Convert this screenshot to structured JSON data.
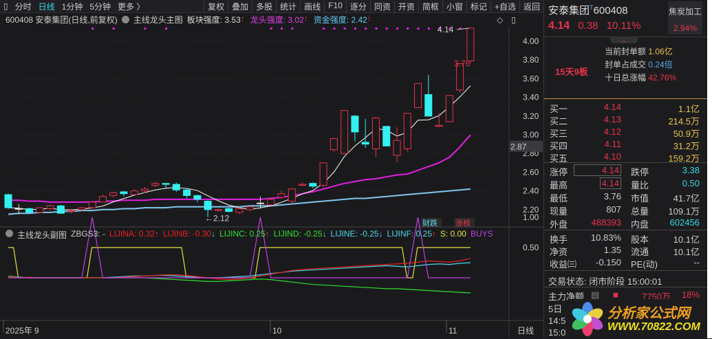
{
  "toolbar": {
    "left": [
      "分时",
      "日线",
      "1分钟",
      "5分钟",
      "更多 〉"
    ],
    "active": "日线",
    "right": [
      "复权",
      "叠加",
      "多股",
      "统计",
      "画线",
      "F10",
      "逐分",
      "同资",
      "开资",
      "简框",
      "小窗",
      "标记",
      "+自选",
      "返回"
    ]
  },
  "infobar": {
    "code_name": "600408 安泰集团(日线,前复权)",
    "indicator": "主线龙头主图",
    "items": [
      {
        "label": "板块强度: 3.53",
        "color": "#dddddd"
      },
      {
        "label": "龙头强度: 3.02",
        "color": "#e040e0"
      },
      {
        "label": "资金强度: 2.42",
        "color": "#60c8f0"
      }
    ]
  },
  "price_axis": {
    "ticks": [
      "4.00",
      "3.80",
      "3.60",
      "3.40",
      "3.20",
      "3.00",
      "2.80",
      "2.60",
      "2.40",
      "2.20"
    ],
    "current": "2.87"
  },
  "chart_labels": {
    "high": "4.14",
    "prev_high": "3.76",
    "low": "←2.12",
    "tag1": "财跌",
    "tag2": "涨榜"
  },
  "candles": [
    [
      2.36,
      2.22,
      2.37,
      2.21
    ],
    [
      2.21,
      2.21,
      2.26,
      2.15
    ],
    [
      2.21,
      2.17,
      2.22,
      2.16
    ],
    [
      2.17,
      2.22,
      2.22,
      2.16
    ],
    [
      2.21,
      2.24,
      2.26,
      2.19
    ],
    [
      2.24,
      2.16,
      2.25,
      2.16
    ],
    [
      2.18,
      2.19,
      2.21,
      2.16
    ],
    [
      2.2,
      2.22,
      2.23,
      2.18
    ],
    [
      2.22,
      2.28,
      2.29,
      2.21
    ],
    [
      2.28,
      2.34,
      2.36,
      2.28
    ],
    [
      2.35,
      2.38,
      2.39,
      2.33
    ],
    [
      2.39,
      2.37,
      2.4,
      2.34
    ],
    [
      2.36,
      2.4,
      2.42,
      2.35
    ],
    [
      2.4,
      2.42,
      2.44,
      2.38
    ],
    [
      2.46,
      2.48,
      2.5,
      2.44
    ],
    [
      2.48,
      2.47,
      2.48,
      2.42
    ],
    [
      2.47,
      2.41,
      2.49,
      2.39
    ],
    [
      2.41,
      2.35,
      2.42,
      2.32
    ],
    [
      2.35,
      2.31,
      2.36,
      2.28
    ],
    [
      2.29,
      2.2,
      2.3,
      2.12
    ],
    [
      2.19,
      2.2,
      2.21,
      2.18
    ],
    [
      2.21,
      2.18,
      2.22,
      2.17
    ],
    [
      2.17,
      2.21,
      2.23,
      2.15
    ],
    [
      2.2,
      2.23,
      2.24,
      2.18
    ],
    [
      2.27,
      2.27,
      2.34,
      2.22
    ],
    [
      2.25,
      2.31,
      2.33,
      2.24
    ],
    [
      2.33,
      2.37,
      2.4,
      2.32
    ],
    [
      2.29,
      2.42,
      2.43,
      2.26
    ],
    [
      2.46,
      2.47,
      2.49,
      2.45
    ],
    [
      2.48,
      2.45,
      2.49,
      2.43
    ],
    [
      2.46,
      2.7,
      2.7,
      2.44
    ],
    [
      2.84,
      2.96,
      2.96,
      2.82
    ],
    [
      2.8,
      3.26,
      3.26,
      2.8
    ],
    [
      3.2,
      3.03,
      3.21,
      2.93
    ],
    [
      2.92,
      2.9,
      3.17,
      2.86
    ],
    [
      2.85,
      3.18,
      3.18,
      2.76
    ],
    [
      3.09,
      2.88,
      3.09,
      2.88
    ],
    [
      2.78,
      2.94,
      3.08,
      2.71
    ],
    [
      2.85,
      3.23,
      3.23,
      2.82
    ],
    [
      3.29,
      3.55,
      3.55,
      3.29
    ],
    [
      3.43,
      3.2,
      3.64,
      3.2
    ],
    [
      3.09,
      3.1,
      3.23,
      3.09
    ],
    [
      3.14,
      3.42,
      3.42,
      3.14
    ],
    [
      3.48,
      3.76,
      3.76,
      3.45
    ],
    [
      3.79,
      4.14,
      4.14,
      3.76
    ]
  ],
  "ma_magenta": [
    2.3,
    2.3,
    2.29,
    2.29,
    2.28,
    2.28,
    2.28,
    2.28,
    2.28,
    2.29,
    2.29,
    2.3,
    2.3,
    2.3,
    2.31,
    2.31,
    2.31,
    2.31,
    2.31,
    2.31,
    2.31,
    2.31,
    2.31,
    2.31,
    2.31,
    2.32,
    2.33,
    2.35,
    2.37,
    2.39,
    2.42,
    2.45,
    2.48,
    2.5,
    2.52,
    2.53,
    2.55,
    2.57,
    2.58,
    2.62,
    2.66,
    2.7,
    2.76,
    2.87,
    3.0
  ],
  "ma_blue": [
    2.15,
    2.16,
    2.16,
    2.17,
    2.17,
    2.18,
    2.18,
    2.19,
    2.19,
    2.2,
    2.2,
    2.21,
    2.21,
    2.22,
    2.22,
    2.22,
    2.23,
    2.23,
    2.23,
    2.23,
    2.23,
    2.23,
    2.23,
    2.24,
    2.24,
    2.24,
    2.25,
    2.26,
    2.27,
    2.28,
    2.29,
    2.3,
    2.31,
    2.32,
    2.32,
    2.33,
    2.34,
    2.35,
    2.36,
    2.37,
    2.38,
    2.39,
    2.4,
    2.41,
    2.42
  ],
  "colors": {
    "up": "#e8334a",
    "down": "#35f0f0",
    "ma5": "#ffffff",
    "ma_magenta": "#e020e0",
    "ma_blue": "#80c8f0"
  },
  "sub": {
    "indicator": "主线龙头副图",
    "name": "ZBGS3: -",
    "items": [
      {
        "label": "LIJINA: 0.32",
        "color": "#e82020",
        "arrow": "↑"
      },
      {
        "label": "LIJINB: -0.30",
        "color": "#e82020",
        "arrow": "↓"
      },
      {
        "label": "LIJINC: 0.25",
        "color": "#30e030",
        "arrow": "↑"
      },
      {
        "label": "LIJIND: -0.25",
        "color": "#30e030",
        "arrow": "↓"
      },
      {
        "label": "LIJINE: -0.25",
        "color": "#50d8e8",
        "arrow": "↓"
      },
      {
        "label": "LIJINF: 0.25",
        "color": "#50d8e8",
        "arrow": "↑"
      },
      {
        "label": "S: 0.00",
        "color": "#e8e040",
        "arrow": ""
      },
      {
        "label": "BUYS",
        "color": "#c040e0",
        "arrow": ""
      }
    ],
    "ticks": [
      "1.00",
      "0.50"
    ],
    "yellow": [
      0.5,
      0,
      0,
      0,
      0,
      0,
      0,
      0,
      0.5,
      0.5,
      0.5,
      0.5,
      0.5,
      0.5,
      0.5,
      0.5,
      0.5,
      0,
      0,
      0,
      0,
      0,
      0,
      0,
      0.5,
      0.5,
      0.5,
      0.5,
      0.5,
      0.5,
      0.5,
      0.5,
      0.5,
      0.5,
      0.5,
      0.5,
      0.5,
      0.5,
      0,
      0.5,
      0.5,
      0.5,
      0.5,
      0.5,
      0.5
    ],
    "magenta": [
      0,
      0,
      0,
      0,
      0,
      0,
      0,
      0,
      1,
      0,
      0,
      0,
      0,
      0,
      0,
      0,
      0,
      0,
      0,
      0,
      0,
      0,
      0,
      0,
      1,
      0,
      0,
      0,
      0,
      0,
      0,
      0,
      0,
      0,
      0,
      0,
      0,
      0,
      0,
      1,
      0,
      0,
      0,
      0,
      0
    ],
    "red": [
      0.02,
      0.0,
      0.01,
      0.0,
      0.0,
      0.0,
      0.0,
      0.0,
      0.0,
      0.0,
      0.0,
      0.01,
      0.02,
      0.03,
      0.04,
      0.05,
      0.05,
      0.04,
      0.02,
      0.0,
      -0.02,
      -0.03,
      -0.02,
      0.0,
      0.03,
      0.06,
      0.09,
      0.12,
      0.14,
      0.15,
      0.16,
      0.17,
      0.18,
      0.19,
      0.2,
      0.21,
      0.22,
      0.23,
      0.24,
      0.26,
      0.28,
      0.27,
      0.26,
      0.28,
      0.32
    ],
    "green": [
      0.03,
      0.01,
      0.0,
      0.0,
      0.0,
      0.0,
      0.0,
      0.0,
      0.0,
      0.0,
      0.0,
      0.0,
      0.0,
      0.0,
      -0.01,
      -0.02,
      -0.03,
      -0.04,
      -0.05,
      -0.06,
      -0.06,
      -0.05,
      -0.04,
      -0.03,
      -0.02,
      -0.03,
      -0.05,
      -0.07,
      -0.09,
      -0.11,
      -0.12,
      -0.13,
      -0.14,
      -0.15,
      -0.16,
      -0.17,
      -0.18,
      -0.18,
      -0.19,
      -0.2,
      -0.21,
      -0.22,
      -0.23,
      -0.24,
      -0.25
    ],
    "cyan": [
      0.0,
      0.01,
      0.0,
      0.0,
      0.0,
      0.0,
      0.0,
      0.0,
      0.0,
      0.0,
      0.01,
      0.02,
      0.03,
      0.03,
      0.04,
      0.04,
      0.03,
      0.02,
      0.01,
      0.0,
      0.0,
      0.01,
      0.02,
      0.03,
      0.05,
      0.07,
      0.09,
      0.11,
      0.12,
      0.13,
      0.14,
      0.15,
      0.16,
      0.17,
      0.18,
      0.19,
      0.2,
      0.19,
      0.18,
      0.2,
      0.22,
      0.23,
      0.22,
      0.24,
      0.25
    ]
  },
  "date_axis": {
    "labels": [
      "2025年 9",
      "10",
      "11"
    ],
    "period": "日线"
  },
  "right": {
    "name": "安泰集团",
    "t": "T",
    "code": "600408",
    "price": "4.14",
    "change": "0.38",
    "pct": "10.11%",
    "sector": "焦炭加工",
    "sector_pct": "2.94%",
    "seal_label": "当前封单额",
    "seal_value": "1.06亿",
    "ratio_label": "封单占成交",
    "ratio_value": "0.24倍",
    "ten_label": "十日总涨幅",
    "ten_value": "42.76%",
    "streak": "15天9板",
    "bids": [
      {
        "l": "买一",
        "p": "4.14",
        "v": "1.1亿"
      },
      {
        "l": "买二",
        "p": "4.13",
        "v": "214.5万"
      },
      {
        "l": "买三",
        "p": "4.12",
        "v": "50.9万"
      },
      {
        "l": "买四",
        "p": "4.11",
        "v": "31.2万"
      },
      {
        "l": "买五",
        "p": "4.10",
        "v": "159.2万"
      }
    ],
    "stats": [
      {
        "l1": "涨停",
        "v1": "4.14",
        "c1": "red",
        "l2": "跌停",
        "v2": "3.38",
        "c2": "cyan"
      },
      {
        "l1": "最高",
        "v1": "4.14",
        "c1": "red",
        "l2": "量比",
        "v2": "0.50",
        "c2": "cyan"
      },
      {
        "l1": "最低",
        "v1": "3.76",
        "c1": "",
        "l2": "市值",
        "v2": "41.7亿",
        "c2": ""
      },
      {
        "l1": "现量",
        "v1": "807",
        "c1": "",
        "l2": "总量",
        "v2": "109.1万",
        "c2": ""
      },
      {
        "l1": "外盘",
        "v1": "488393",
        "c1": "red",
        "l2": "内盘",
        "v2": "602456",
        "c2": "cyan"
      }
    ],
    "stats2": [
      {
        "l1": "换手",
        "v1": "10.83%",
        "l2": "股本",
        "v2": "10.1亿"
      },
      {
        "l1": "净资",
        "v1": "1.35",
        "l2": "流通",
        "v2": "10.1亿"
      },
      {
        "l1": "收益㈢",
        "v1": "-0.150",
        "l2": "PE(动)",
        "v2": "--"
      }
    ],
    "status": "交易状态: 闭市阶段 15:00:01",
    "main_label": "主力净额",
    "main_value": "7750万",
    "main_pct": "18%",
    "five_day": "5日",
    "t1": "14:5",
    "t2": "15:0"
  },
  "watermark": {
    "cn": "分析家公式网",
    "url": "WWW.70822.COM"
  }
}
